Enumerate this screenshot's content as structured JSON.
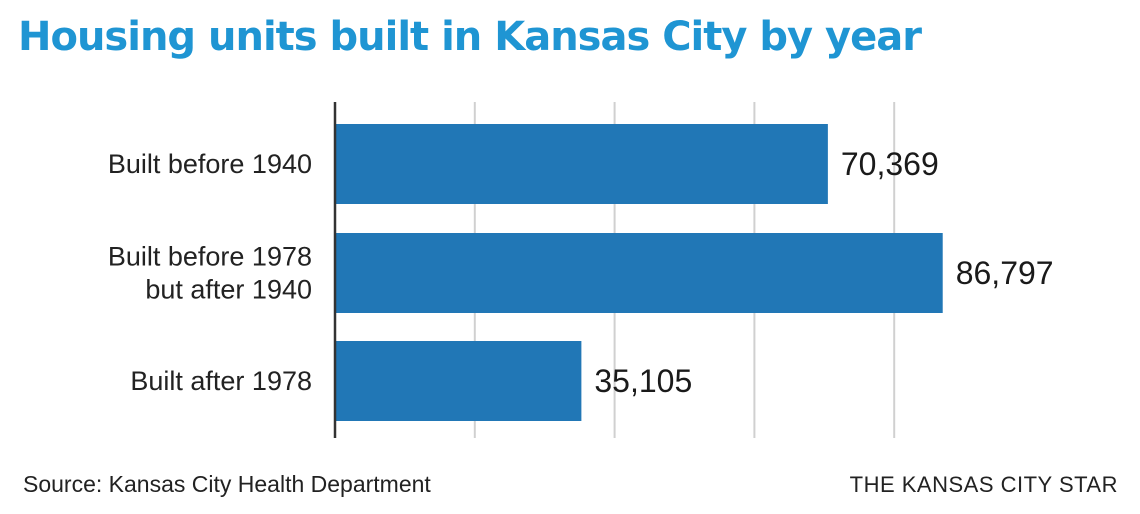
{
  "title": "Housing units built in Kansas City by year",
  "source": "Source: Kansas City Health Department",
  "brand": "THE KANSAS CITY STAR",
  "colors": {
    "bar": "#2177b6",
    "title": "#1f95d3",
    "grid": "#d0d0d0",
    "axis": "#333333"
  },
  "chart_data": {
    "type": "bar",
    "orientation": "horizontal",
    "title": "Housing units built in Kansas City by year",
    "categories": [
      [
        "Built before 1940"
      ],
      [
        "Built before 1978",
        "but after 1940"
      ],
      [
        "Built after 1978"
      ]
    ],
    "values": [
      70369,
      86797,
      35105
    ],
    "value_labels": [
      "70,369",
      "86,797",
      "35,105"
    ],
    "xlim": [
      0,
      100000
    ],
    "gridlines": [
      20000,
      40000,
      60000,
      80000
    ],
    "grid": true,
    "xlabel": "",
    "ylabel": ""
  }
}
